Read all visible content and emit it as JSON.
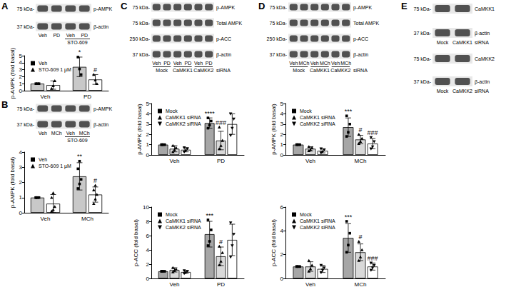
{
  "chart_data": [
    {
      "type": "bar",
      "ylabel": "p-AMPK (fold basal)",
      "categories": [
        "Veh",
        "PD"
      ],
      "ylim": [
        0,
        5
      ],
      "yticks": [
        0,
        1,
        2,
        3,
        4,
        5
      ],
      "grid": false,
      "legend": "top-left",
      "series": [
        {
          "name": "Veh",
          "color": "#c8c8c8",
          "marker": "square",
          "values": [
            1,
            3.4
          ],
          "errors": [
            0,
            1.4
          ],
          "points": [
            [
              1,
              1,
              1
            ],
            [
              4.8,
              3.1,
              2.3
            ]
          ],
          "annotations": [
            null,
            "*"
          ]
        },
        {
          "name": "STO-609 1 µM",
          "color": "#ffffff",
          "marker": "triangle",
          "values": [
            0.8,
            1.6
          ],
          "errors": [
            0.6,
            0.7
          ],
          "points": [
            [
              0.3,
              0.7,
              1.4
            ],
            [
              2.3,
              1.5,
              1.0
            ]
          ],
          "annotations": [
            null,
            "#"
          ]
        }
      ]
    },
    {
      "type": "bar",
      "ylabel": "p-AMPK (fold basal)",
      "categories": [
        "Veh",
        "MCh"
      ],
      "ylim": [
        0,
        4
      ],
      "yticks": [
        0,
        1,
        2,
        3,
        4
      ],
      "grid": false,
      "legend": "top-left",
      "series": [
        {
          "name": "Veh",
          "color": "#c8c8c8",
          "marker": "square",
          "values": [
            1,
            2.4
          ],
          "errors": [
            0,
            0.9
          ],
          "points": [
            [
              1,
              1,
              1,
              1,
              1
            ],
            [
              1.6,
              1.9,
              2.2,
              2.9,
              3.4
            ]
          ],
          "annotations": [
            null,
            "**"
          ]
        },
        {
          "name": "STO-609 1 µM",
          "color": "#ffffff",
          "marker": "triangle",
          "values": [
            0.6,
            1.2
          ],
          "errors": [
            0.6,
            0.5
          ],
          "points": [
            [
              0.1,
              0.2,
              0.4,
              1.0,
              1.3
            ],
            [
              0.6,
              0.9,
              1.2,
              1.5,
              1.8
            ]
          ],
          "annotations": [
            null,
            "#"
          ]
        }
      ]
    },
    {
      "type": "bar",
      "ylabel": "p-AMPK (fold basal)",
      "categories": [
        "Veh",
        "PD"
      ],
      "ylim": [
        0,
        5
      ],
      "yticks": [
        0,
        1,
        2,
        3,
        4,
        5
      ],
      "grid": false,
      "legend": "top-left",
      "series": [
        {
          "name": "Mock",
          "color": "#a6a6a6",
          "marker": "square",
          "values": [
            1,
            3.1
          ],
          "errors": [
            0,
            0.5
          ],
          "points": [
            [
              1,
              1,
              1,
              1
            ],
            [
              2.6,
              2.9,
              3.3,
              3.6
            ]
          ],
          "annotations": [
            null,
            "****"
          ]
        },
        {
          "name": "CaMKK1 siRNA",
          "color": "#d9d9d9",
          "marker": "triangle",
          "values": [
            0.6,
            1.4
          ],
          "errors": [
            0.3,
            0.9
          ],
          "points": [
            [
              0.3,
              0.5,
              0.7,
              0.9
            ],
            [
              0.6,
              0.9,
              1.4,
              2.7
            ]
          ],
          "annotations": [
            null,
            "###"
          ]
        },
        {
          "name": "CaMKK2 siRNA",
          "color": "#ffffff",
          "marker": "triangle-down",
          "values": [
            0.5,
            3.0
          ],
          "errors": [
            0.2,
            1.0
          ],
          "points": [
            [
              0.3,
              0.4,
              0.6,
              0.7
            ],
            [
              1.9,
              2.6,
              3.5,
              4.0
            ]
          ],
          "annotations": [
            null,
            null
          ]
        }
      ]
    },
    {
      "type": "bar",
      "ylabel": "p-ACC (fold basal)",
      "categories": [
        "Veh",
        "PD"
      ],
      "ylim": [
        0,
        10
      ],
      "yticks": [
        0,
        2,
        4,
        6,
        8,
        10
      ],
      "grid": false,
      "legend": "top-left",
      "series": [
        {
          "name": "Mock",
          "color": "#a6a6a6",
          "marker": "square",
          "values": [
            1,
            6.2
          ],
          "errors": [
            0,
            1.8
          ],
          "points": [
            [
              1,
              1,
              1,
              1
            ],
            [
              4.6,
              5.2,
              6.8,
              8.2
            ]
          ],
          "annotations": [
            null,
            "***"
          ]
        },
        {
          "name": "CaMKK1 siRNA",
          "color": "#d9d9d9",
          "marker": "triangle",
          "values": [
            1.2,
            3.1
          ],
          "errors": [
            0.3,
            1.3
          ],
          "points": [
            [
              0.9,
              1.1,
              1.3,
              1.5
            ],
            [
              1.9,
              2.4,
              3.6,
              4.5
            ]
          ],
          "annotations": [
            null,
            "#"
          ]
        },
        {
          "name": "CaMKK2 siRNA",
          "color": "#ffffff",
          "marker": "triangle-down",
          "values": [
            0.9,
            5.4
          ],
          "errors": [
            0.2,
            2.2
          ],
          "points": [
            [
              0.7,
              0.8,
              1.0,
              1.1
            ],
            [
              3.0,
              4.6,
              6.2,
              7.8
            ]
          ],
          "annotations": [
            null,
            null
          ]
        }
      ]
    },
    {
      "type": "bar",
      "ylabel": "p-AMPK (fold basal)",
      "categories": [
        "Veh",
        "MCh"
      ],
      "ylim": [
        0,
        5
      ],
      "yticks": [
        0,
        1,
        2,
        3,
        4,
        5
      ],
      "grid": false,
      "legend": "top-left",
      "series": [
        {
          "name": "Mock",
          "color": "#a6a6a6",
          "marker": "square",
          "values": [
            1,
            2.7
          ],
          "errors": [
            0,
            0.9
          ],
          "points": [
            [
              1,
              1,
              1,
              1
            ],
            [
              1.8,
              2.2,
              3.0,
              3.8
            ]
          ],
          "annotations": [
            null,
            "***"
          ]
        },
        {
          "name": "CaMKK1 siRNA",
          "color": "#d9d9d9",
          "marker": "triangle",
          "values": [
            0.6,
            1.5
          ],
          "errors": [
            0.2,
            0.4
          ],
          "points": [
            [
              0.4,
              0.5,
              0.7,
              0.8
            ],
            [
              1.1,
              1.3,
              1.6,
              2.0
            ]
          ],
          "annotations": [
            null,
            "#"
          ]
        },
        {
          "name": "CaMKK2 siRNA",
          "color": "#ffffff",
          "marker": "triangle-down",
          "values": [
            0.4,
            1.1
          ],
          "errors": [
            0.2,
            0.5
          ],
          "points": [
            [
              0.2,
              0.3,
              0.5,
              0.6
            ],
            [
              0.6,
              0.8,
              1.3,
              1.7
            ]
          ],
          "annotations": [
            null,
            "###"
          ]
        }
      ]
    },
    {
      "type": "bar",
      "ylabel": "p-ACC (fold basal)",
      "categories": [
        "Veh",
        "MCh"
      ],
      "ylim": [
        0,
        6
      ],
      "yticks": [
        0,
        2,
        4,
        6
      ],
      "grid": false,
      "legend": "top-left",
      "series": [
        {
          "name": "Mock",
          "color": "#a6a6a6",
          "marker": "square",
          "values": [
            1,
            3.4
          ],
          "errors": [
            0,
            1.2
          ],
          "points": [
            [
              1,
              1,
              1,
              1
            ],
            [
              2.2,
              2.8,
              3.8,
              4.8
            ]
          ],
          "annotations": [
            null,
            "***"
          ]
        },
        {
          "name": "CaMKK1 siRNA",
          "color": "#d9d9d9",
          "marker": "triangle",
          "values": [
            1.0,
            2.2
          ],
          "errors": [
            0.4,
            0.7
          ],
          "points": [
            [
              0.6,
              0.8,
              1.1,
              1.5
            ],
            [
              1.5,
              1.8,
              2.4,
              3.1
            ]
          ],
          "annotations": [
            null,
            "#"
          ]
        },
        {
          "name": "CaMKK2 siRNA",
          "color": "#ffffff",
          "marker": "triangle-down",
          "values": [
            0.8,
            1.0
          ],
          "errors": [
            0.3,
            0.3
          ],
          "points": [
            [
              0.5,
              0.7,
              0.9,
              1.1
            ],
            [
              0.7,
              0.9,
              1.1,
              1.3
            ]
          ],
          "annotations": [
            null,
            "###"
          ]
        }
      ]
    }
  ],
  "panels": [
    {
      "label": "A",
      "blots": [
        {
          "rows": [
            {
              "kda": "75 kDa-",
              "name": "p-AMPK"
            },
            {
              "kda": "37 kDa-",
              "name": "β-actin"
            }
          ],
          "lanes": [
            "Veh",
            "PD",
            "Veh",
            "PD"
          ],
          "groups": [
            null,
            "STO-609"
          ]
        }
      ]
    },
    {
      "label": "B",
      "blots": [
        {
          "rows": [
            {
              "kda": "75 kDa-",
              "name": "p-AMPK"
            },
            {
              "kda": "37 kDa-",
              "name": "β-actin"
            }
          ],
          "lanes": [
            "Veh",
            "MCh",
            "Veh",
            "MCh"
          ],
          "groups": [
            null,
            "STO-609"
          ]
        }
      ]
    },
    {
      "label": "C",
      "blots": [
        {
          "rows": [
            {
              "kda": "75 kDa-",
              "name": "p-AMPK"
            },
            {
              "kda": "75 kDa-",
              "name": "Total AMPK"
            },
            {
              "kda": "250 kDa-",
              "name": "p-ACC"
            },
            {
              "kda": "37 kDa-",
              "name": "β-actin"
            }
          ],
          "lanes": [
            "Veh",
            "PD",
            "Veh",
            "PD",
            "Veh",
            "PD"
          ],
          "groups": [
            "Mock",
            "CaMKK1",
            "CaMKK2"
          ],
          "group_suffix": "siRNA"
        }
      ]
    },
    {
      "label": "D",
      "blots": [
        {
          "rows": [
            {
              "kda": "75 kDa-",
              "name": "p-AMPK"
            },
            {
              "kda": "75 kDa-",
              "name": "Total AMPK"
            },
            {
              "kda": "250 kDa-",
              "name": "p-ACC"
            },
            {
              "kda": "37 kDa-",
              "name": "β-actin"
            }
          ],
          "lanes": [
            "Veh",
            "MCh",
            "Veh",
            "MCh",
            "Veh",
            "MCh"
          ],
          "groups": [
            "Mock",
            "CaMKK1",
            "CaMKK2"
          ],
          "group_suffix": "siRNA"
        }
      ]
    },
    {
      "label": "E",
      "blots": [
        {
          "rows": [
            {
              "kda": "75 kDa-",
              "name": "CaMKK1"
            },
            {
              "kda": "37 kDa-",
              "name": "β-actin"
            }
          ],
          "lanes": null,
          "groups": [
            "Mock",
            "CaMKK1"
          ],
          "group_suffix": "siRNA"
        },
        {
          "rows": [
            {
              "kda": "75 kDa-",
              "name": "CaMKK2"
            },
            {
              "kda": "37 kDa-",
              "name": "β-actin"
            }
          ],
          "lanes": null,
          "groups": [
            "Mock",
            "CaMKK2"
          ],
          "group_suffix": "siRNA"
        }
      ]
    }
  ]
}
